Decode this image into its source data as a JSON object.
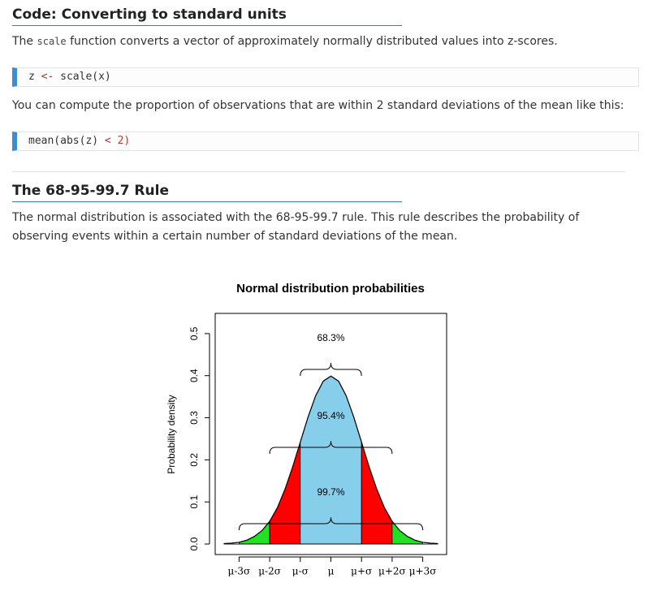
{
  "document": {
    "heading1": "Code: Converting to standard units",
    "paragraph1": [
      "The ",
      "scale",
      " function converts a vector of approximately normally distributed values into z-scores."
    ],
    "code1": [
      "z",
      "<-",
      "scale(x)"
    ],
    "paragraph2": "You can compute the proportion of observations that are within 2 standard deviations of the mean like this:",
    "code2": [
      "mean(abs(z)",
      "<",
      "2)"
    ],
    "heading2": "The 68-95-99.7 Rule",
    "paragraph3": "The normal distribution is associated with the 68-95-99.7 rule. This rule describes the probability of observing events within a certain number of standard deviations of the mean."
  },
  "chart_data": {
    "type": "area",
    "title": "Normal distribution probabilities",
    "ylabel": "Probability density",
    "x": [
      -3.5,
      -3.25,
      -3,
      -2.75,
      -2.5,
      -2.25,
      -2,
      -1.75,
      -1.5,
      -1.25,
      -1,
      -0.75,
      -0.5,
      -0.25,
      0,
      0.25,
      0.5,
      0.75,
      1,
      1.25,
      1.5,
      1.75,
      2,
      2.25,
      2.5,
      2.75,
      3,
      3.25,
      3.5
    ],
    "values": [
      0.001,
      0.002,
      0.004,
      0.009,
      0.018,
      0.032,
      0.054,
      0.086,
      0.13,
      0.183,
      0.242,
      0.301,
      0.352,
      0.387,
      0.399,
      0.387,
      0.352,
      0.301,
      0.242,
      0.183,
      0.13,
      0.086,
      0.054,
      0.032,
      0.018,
      0.009,
      0.004,
      0.002,
      0.001
    ],
    "line_color": "#000000",
    "regions": [
      {
        "from": -3,
        "to": -2,
        "color": "#22e022"
      },
      {
        "from": -2,
        "to": -1,
        "color": "#ff0000"
      },
      {
        "from": -1,
        "to": 1,
        "color": "#87ceeb"
      },
      {
        "from": 1,
        "to": 2,
        "color": "#ff0000"
      },
      {
        "from": 2,
        "to": 3,
        "color": "#22e022"
      }
    ],
    "intervals": {
      "values": [
        68.3,
        95.4,
        99.7
      ],
      "value_labels": [
        "68.3%",
        "95.4%",
        "99.7%"
      ],
      "from": [
        -1,
        -2,
        -3
      ],
      "to": [
        1,
        2,
        3
      ]
    },
    "xlim": [
      -3.78,
      3.78
    ],
    "ylim": [
      -0.025,
      0.548
    ],
    "xticks": [
      {
        "value": -3,
        "label": "μ-3σ"
      },
      {
        "value": -2,
        "label": "μ-2σ"
      },
      {
        "value": -1,
        "label": "μ-σ"
      },
      {
        "value": 0,
        "label": "μ"
      },
      {
        "value": 1,
        "label": "μ+σ"
      },
      {
        "value": 2,
        "label": "μ+2σ"
      },
      {
        "value": 3,
        "label": "μ+3σ"
      }
    ],
    "yticks": [
      {
        "value": 0,
        "label": "0.0"
      },
      0.1,
      0.2,
      0.3,
      0.4,
      0.5
    ]
  }
}
